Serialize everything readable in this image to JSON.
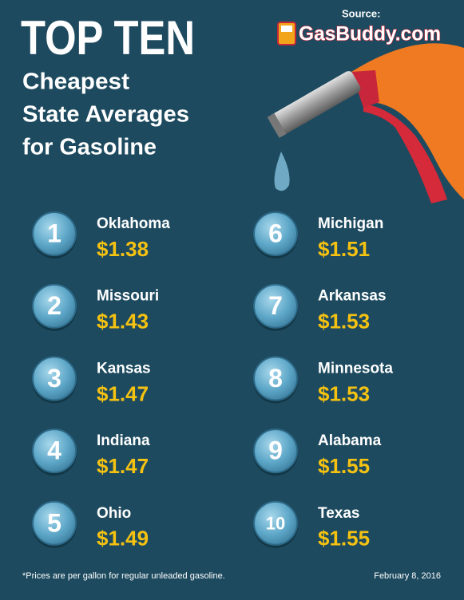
{
  "header": {
    "title": "TOP TEN",
    "subtitle": [
      "Cheapest",
      "State Averages",
      "for Gasoline"
    ],
    "source_label": "Source:",
    "source": "GasBuddy.com"
  },
  "items": [
    {
      "rank": 1,
      "state": "Oklahoma",
      "price": "$1.38"
    },
    {
      "rank": 2,
      "state": "Missouri",
      "price": "$1.43"
    },
    {
      "rank": 3,
      "state": "Kansas",
      "price": "$1.47"
    },
    {
      "rank": 4,
      "state": "Indiana",
      "price": "$1.47"
    },
    {
      "rank": 5,
      "state": "Ohio",
      "price": "$1.49"
    },
    {
      "rank": 6,
      "state": "Michigan",
      "price": "$1.51"
    },
    {
      "rank": 7,
      "state": "Arkansas",
      "price": "$1.53"
    },
    {
      "rank": 8,
      "state": "Minnesota",
      "price": "$1.53"
    },
    {
      "rank": 9,
      "state": "Alabama",
      "price": "$1.55"
    },
    {
      "rank": 10,
      "state": "Texas",
      "price": "$1.55"
    }
  ],
  "footer": {
    "note": "*Prices are per gallon for regular unleaded gasoline.",
    "date": "February 8, 2016"
  }
}
